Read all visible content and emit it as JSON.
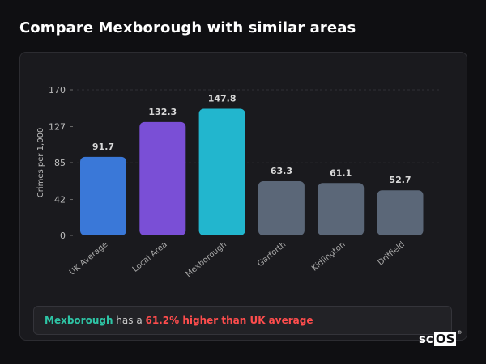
{
  "title": "Compare Mexborough with similar areas",
  "chart_data": {
    "type": "bar",
    "ylabel": "Crimes per 1,000",
    "ylim": [
      0,
      170
    ],
    "yticks": [
      0,
      42,
      85,
      127,
      170
    ],
    "grid": "dashed horizontal at top",
    "categories": [
      "UK Average",
      "Local Area",
      "Mexborough",
      "Garforth",
      "Kidlington",
      "Driffield"
    ],
    "values": [
      91.7,
      132.3,
      147.8,
      63.3,
      61.1,
      52.7
    ],
    "value_labels": [
      "91.7",
      "132.3",
      "147.8",
      "63.3",
      "61.1",
      "52.7"
    ],
    "colors": [
      "#3a78d8",
      "#7a4fd6",
      "#22b6ce",
      "#5b6778",
      "#5b6778",
      "#5b6778"
    ]
  },
  "summary": {
    "area": "Mexborough",
    "middle": " has a ",
    "difference": "61.2% higher than UK average"
  },
  "logo": {
    "text_sc": "sc",
    "text_os": "OS",
    "mark": "®"
  }
}
